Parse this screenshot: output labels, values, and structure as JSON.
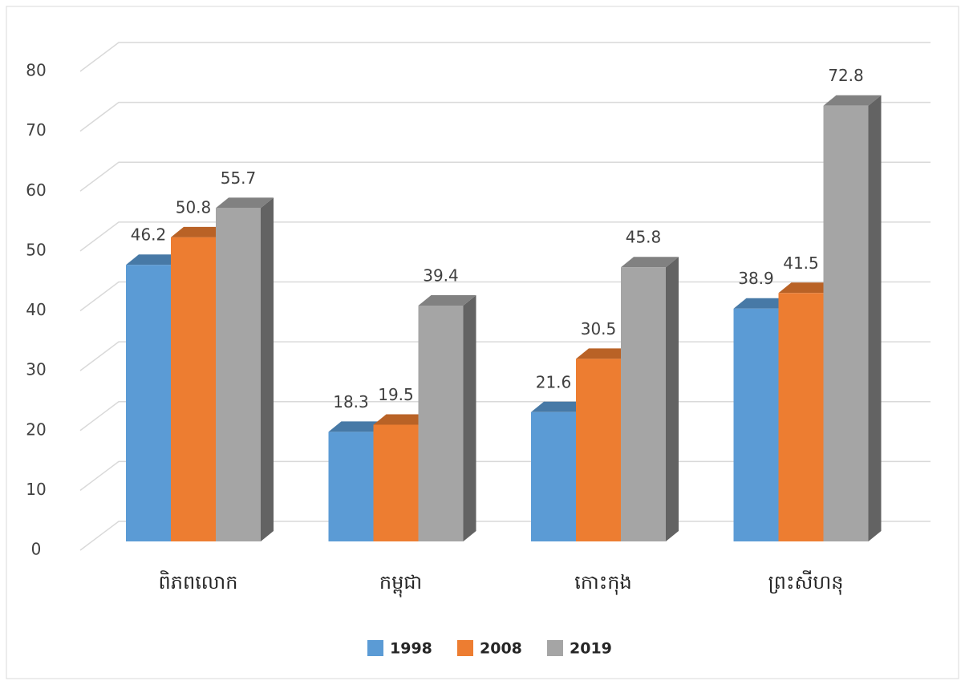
{
  "chart_data": {
    "type": "bar3d",
    "categories": [
      "ពិភពលោក",
      "កម្ពុជា",
      "កោះកុង",
      "ព្រះសីហនុ"
    ],
    "series": [
      {
        "name": "1998",
        "color": "#5b9bd5",
        "values": [
          46.2,
          18.3,
          21.6,
          38.9
        ]
      },
      {
        "name": "2008",
        "color": "#ed7d31",
        "values": [
          50.8,
          19.5,
          30.5,
          41.5
        ]
      },
      {
        "name": "2019",
        "color": "#a5a5a5",
        "values": [
          55.7,
          39.4,
          45.8,
          72.8
        ]
      }
    ],
    "ylim": [
      0,
      80
    ],
    "yticks": [
      0,
      10,
      20,
      30,
      40,
      50,
      60,
      70,
      80
    ],
    "grid": true,
    "legend": "bottom"
  }
}
